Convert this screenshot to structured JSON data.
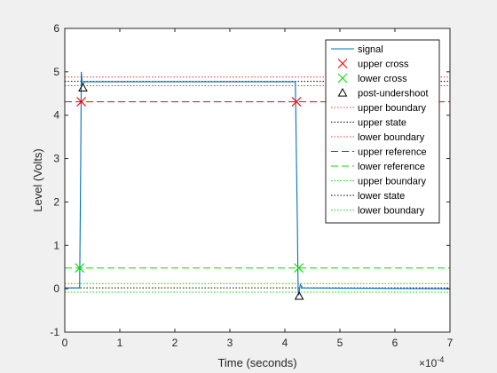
{
  "chart_data": {
    "type": "line",
    "title": "",
    "xlabel": "Time (seconds)",
    "ylabel": "Level (Volts)",
    "xlim": [
      0,
      7
    ],
    "ylim": [
      -1,
      6
    ],
    "x_multiplier_label": "×10",
    "x_multiplier_exponent": "-4",
    "xticks": [
      "0",
      "1",
      "2",
      "3",
      "4",
      "5",
      "6",
      "7"
    ],
    "yticks": [
      "-1",
      "0",
      "1",
      "2",
      "3",
      "4",
      "5",
      "6"
    ],
    "grid": false,
    "legend_position": "top-right",
    "signal": {
      "name": "signal",
      "color": "#0072bd",
      "points": [
        [
          0,
          0.02
        ],
        [
          0.26,
          0.02
        ],
        [
          0.27,
          0.02
        ],
        [
          0.29,
          3.0
        ],
        [
          0.3,
          5.0
        ],
        [
          0.32,
          4.7
        ],
        [
          0.36,
          4.77
        ],
        [
          4.17,
          4.77
        ],
        [
          4.19,
          4.77
        ],
        [
          4.21,
          3.0
        ],
        [
          4.23,
          1.2
        ],
        [
          4.24,
          0.0
        ],
        [
          4.25,
          -0.15
        ],
        [
          4.28,
          0.1
        ],
        [
          4.32,
          0.02
        ],
        [
          7.0,
          0.0
        ]
      ]
    },
    "upper_cross": {
      "name": "upper cross",
      "color": "#ff0000",
      "x": [
        0.3,
        4.21
      ],
      "y": [
        4.31,
        4.31
      ]
    },
    "lower_cross": {
      "name": "lower cross",
      "color": "#00e000",
      "x": [
        0.27,
        4.25
      ],
      "y": [
        0.48,
        0.48
      ]
    },
    "post_undershoot": {
      "name": "post-undershoot",
      "color": "#000000",
      "x": [
        0.33,
        4.26
      ],
      "y": [
        4.63,
        -0.17
      ]
    },
    "hlines": [
      {
        "name": "upper boundary",
        "y": 4.88,
        "color": "#ff3030",
        "style": "dot"
      },
      {
        "name": "upper state",
        "y": 4.78,
        "color": "#000000",
        "style": "dot"
      },
      {
        "name": "lower boundary",
        "y": 4.68,
        "color": "#ff3030",
        "style": "dot"
      },
      {
        "name": "upper reference",
        "y": 4.31,
        "color": "#ff0000",
        "style": "dash"
      },
      {
        "name": "lower reference",
        "y": 0.48,
        "color": "#00e000",
        "style": "dash"
      },
      {
        "name": "upper boundary",
        "y": 0.12,
        "color": "#00e000",
        "style": "dot"
      },
      {
        "name": "lower state",
        "y": 0.02,
        "color": "#000000",
        "style": "dot"
      },
      {
        "name": "lower boundary",
        "y": -0.08,
        "color": "#00e000",
        "style": "dot"
      }
    ],
    "legend": [
      {
        "label": "signal",
        "kind": "line",
        "color": "#0072bd",
        "dash": ""
      },
      {
        "label": "upper cross",
        "kind": "xmark",
        "color": "#ff0000"
      },
      {
        "label": "lower cross",
        "kind": "xmark",
        "color": "#00e000"
      },
      {
        "label": "post-undershoot",
        "kind": "triangle",
        "color": "#000000"
      },
      {
        "label": "upper boundary",
        "kind": "line",
        "color": "#ff3030",
        "dash": "dot"
      },
      {
        "label": "upper state",
        "kind": "line",
        "color": "#000000",
        "dash": "dot"
      },
      {
        "label": "lower boundary",
        "kind": "line",
        "color": "#ff3030",
        "dash": "dot"
      },
      {
        "label": "upper reference",
        "kind": "line",
        "color": "#ff0000",
        "dash": "dash"
      },
      {
        "label": "lower reference",
        "kind": "line",
        "color": "#00e000",
        "dash": "dash"
      },
      {
        "label": "upper boundary",
        "kind": "line",
        "color": "#00e000",
        "dash": "dot"
      },
      {
        "label": "lower state",
        "kind": "line",
        "color": "#000000",
        "dash": "dot"
      },
      {
        "label": "lower boundary",
        "kind": "line",
        "color": "#00e000",
        "dash": "dot"
      }
    ]
  }
}
